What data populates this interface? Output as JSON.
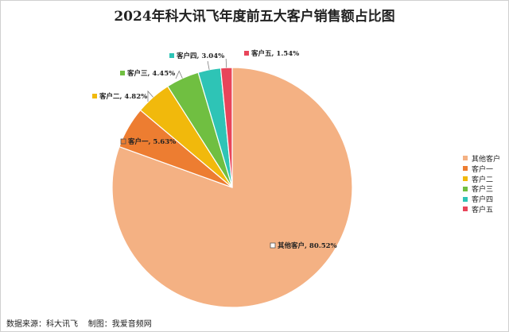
{
  "footer": {
    "source_label": "数据来源：科大讯飞",
    "maker_label": "制图：我爱音频网"
  },
  "chart_data": {
    "type": "pie",
    "title": "2024年科大讯飞年度前五大客户销售额占比图",
    "unit": "%",
    "legend_position": "right",
    "slices": [
      {
        "name": "其他客户",
        "value": 80.52,
        "label": "其他客户, 80.52%",
        "color": "#F4B183"
      },
      {
        "name": "客户一",
        "value": 5.63,
        "label": "客户一, 5.63%",
        "color": "#ED7D31"
      },
      {
        "name": "客户二",
        "value": 4.82,
        "label": "客户二, 4.82%",
        "color": "#F1B90C"
      },
      {
        "name": "客户三",
        "value": 4.45,
        "label": "客户三, 4.45%",
        "color": "#70BF41"
      },
      {
        "name": "客户四",
        "value": 3.04,
        "label": "客户四, 3.04%",
        "color": "#2EC4B6"
      },
      {
        "name": "客户五",
        "value": 1.54,
        "label": "客户五, 1.54%",
        "color": "#E8455A"
      }
    ]
  }
}
